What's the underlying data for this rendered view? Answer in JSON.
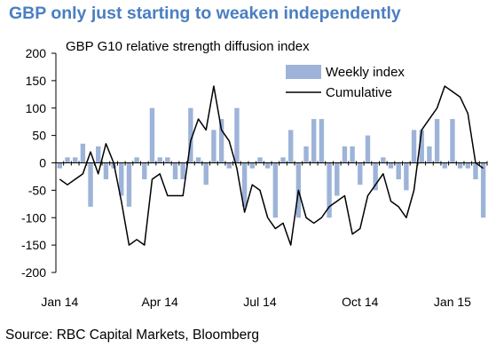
{
  "headline": "GBP only just starting to weaken independently",
  "source": "Source: RBC Capital Markets, Bloomberg",
  "colors": {
    "headline": "#4a7ec2",
    "bar": "#9db3d8",
    "line": "#000000"
  },
  "chart_data": {
    "type": "bar+line",
    "title": "GBP G10 relative strength diffusion index",
    "xlabel": "",
    "ylabel": "",
    "ylim": [
      -200,
      200
    ],
    "yticks": [
      200,
      150,
      100,
      50,
      0,
      -50,
      -100,
      -150,
      -200
    ],
    "xtick_labels": [
      "Jan 14",
      "Apr 14",
      "Jul 14",
      "Oct 14",
      "Jan 15"
    ],
    "legend_position": "top-right",
    "grid": false,
    "series": [
      {
        "name": "Weekly index",
        "type": "bar",
        "values": [
          -10,
          10,
          10,
          35,
          -80,
          30,
          -30,
          -10,
          -60,
          -80,
          10,
          -30,
          100,
          10,
          10,
          -30,
          -30,
          100,
          10,
          -40,
          60,
          80,
          -10,
          100,
          -80,
          -10,
          10,
          -10,
          -100,
          10,
          60,
          -100,
          30,
          80,
          80,
          -100,
          -60,
          30,
          30,
          -40,
          50,
          -50,
          10,
          -10,
          -30,
          -50,
          60,
          60,
          30,
          80,
          -10,
          80,
          -10,
          -10,
          -30,
          -100
        ]
      },
      {
        "name": "Cumulative",
        "type": "line",
        "values": [
          -30,
          -40,
          -30,
          -20,
          20,
          -20,
          35,
          0,
          -70,
          -150,
          -140,
          -150,
          -30,
          -20,
          -60,
          -60,
          -60,
          40,
          80,
          60,
          140,
          60,
          40,
          -10,
          -90,
          -40,
          -50,
          -100,
          -120,
          -110,
          -150,
          -50,
          -100,
          -110,
          -100,
          -80,
          -70,
          -60,
          -130,
          -120,
          -60,
          -40,
          -20,
          -70,
          -80,
          -100,
          -50,
          60,
          80,
          100,
          140,
          130,
          120,
          90,
          0,
          -10
        ]
      }
    ]
  }
}
